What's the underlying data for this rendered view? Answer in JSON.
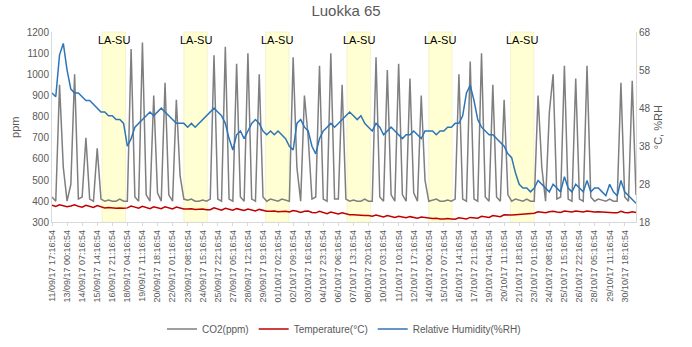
{
  "chart_data": {
    "type": "line",
    "title": "Luokka 65",
    "y_label": "ppm",
    "y2_label": "°C, %RH",
    "categories": [
      "11/09/17 17:16:54",
      null,
      null,
      null,
      "13/09/17 00:16:54",
      null,
      null,
      null,
      "14/09/17 07:16:54",
      null,
      null,
      null,
      "15/09/17 14:16:54",
      null,
      null,
      null,
      "16/09/17 21:16:54",
      null,
      null,
      null,
      "18/09/17 04:16:54",
      null,
      null,
      null,
      "19/09/17 11:16:54",
      null,
      null,
      null,
      "20/09/17 18:16:54",
      null,
      null,
      null,
      "22/09/17 01:16:54",
      null,
      null,
      null,
      "23/09/17 08:16:54",
      null,
      null,
      null,
      "24/09/17 15:16:54",
      null,
      null,
      null,
      "25/09/17 22:16:54",
      null,
      null,
      null,
      "27/09/17 05:16:54",
      null,
      null,
      null,
      "28/09/17 12:16:54",
      null,
      null,
      null,
      "29/09/17 19:16:54",
      null,
      null,
      null,
      "01/10/17 02:16:54",
      null,
      null,
      null,
      "02/10/17 09:16:54",
      null,
      null,
      null,
      "03/10/17 16:16:54",
      null,
      null,
      null,
      "04/10/17 23:16:54",
      null,
      null,
      null,
      "06/10/17 06:16:54",
      null,
      null,
      null,
      "07/10/17 13:16:54",
      null,
      null,
      null,
      "08/10/17 20:16:54",
      null,
      null,
      null,
      "10/10/17 03:16:54",
      null,
      null,
      null,
      "11/10/17 10:16:54",
      null,
      null,
      null,
      "12/10/17 17:16:54",
      null,
      null,
      null,
      "14/10/17 00:16:54",
      null,
      null,
      null,
      "15/10/17 07:16:54",
      null,
      null,
      null,
      "16/10/17 14:16:54",
      null,
      null,
      null,
      "17/10/17 21:16:54",
      null,
      null,
      null,
      "19/10/17 04:16:54",
      null,
      null,
      null,
      "20/10/17 11:16:54",
      null,
      null,
      null,
      "21/10/17 18:16:54",
      null,
      null,
      null,
      "23/10/17 01:16:54",
      null,
      null,
      null,
      "24/10/17 08:16:54",
      null,
      null,
      null,
      "25/10/17 15:16:54",
      null,
      null,
      null,
      "26/10/17 22:16:54",
      null,
      null,
      null,
      "28/10/17 05:16:54",
      null,
      null,
      null,
      "29/10/17 11:16:54",
      null,
      null,
      null,
      "30/10/17 18:16:54",
      null,
      null,
      null
    ],
    "series": [
      {
        "name": "CO2(ppm)",
        "color": "#7f7f7f",
        "values": [
          420,
          400,
          950,
          560,
          400,
          480,
          1000,
          410,
          420,
          700,
          410,
          400,
          650,
          410,
          400,
          405,
          400,
          400,
          410,
          400,
          400,
          1120,
          420,
          400,
          1150,
          430,
          400,
          900,
          440,
          400,
          960,
          430,
          400,
          880,
          520,
          410,
          405,
          410,
          400,
          400,
          405,
          400,
          410,
          1090,
          410,
          400,
          1130,
          410,
          400,
          1050,
          420,
          400,
          1100,
          410,
          400,
          1000,
          420,
          400,
          410,
          405,
          400,
          410,
          405,
          400,
          1080,
          560,
          400,
          900,
          700,
          410,
          420,
          1040,
          410,
          400,
          1100,
          410,
          410,
          950,
          410,
          400,
          405,
          400,
          400,
          410,
          400,
          400,
          1080,
          420,
          400,
          1020,
          430,
          400,
          1050,
          430,
          400,
          980,
          440,
          400,
          900,
          500,
          400,
          405,
          410,
          400,
          400,
          405,
          400,
          410,
          1000,
          410,
          400,
          1060,
          410,
          400,
          1100,
          420,
          400,
          950,
          420,
          400,
          880,
          430,
          400,
          410,
          405,
          400,
          410,
          400,
          400,
          900,
          560,
          400,
          820,
          1000,
          410,
          420,
          1040,
          410,
          400,
          980,
          410,
          400,
          1040,
          420,
          400,
          410,
          405,
          400,
          410,
          400,
          400,
          960,
          420,
          400,
          970,
          430
        ]
      },
      {
        "name": "Temperature(°C)",
        "color": "#c00000",
        "axis": "y2",
        "values": [
          22.5,
          22.2,
          22.6,
          22.4,
          22.1,
          22.3,
          22.6,
          22.2,
          22.0,
          22.5,
          22.1,
          21.9,
          22.4,
          22.0,
          21.8,
          21.9,
          21.8,
          21.7,
          21.8,
          21.7,
          21.8,
          22.3,
          22.0,
          21.7,
          22.2,
          21.9,
          21.6,
          22.1,
          21.9,
          21.6,
          22.1,
          21.8,
          21.5,
          22.0,
          21.7,
          21.5,
          21.5,
          21.6,
          21.4,
          21.4,
          21.5,
          21.3,
          21.3,
          21.8,
          21.5,
          21.2,
          21.7,
          21.4,
          21.2,
          21.6,
          21.3,
          21.1,
          21.5,
          21.2,
          21.0,
          21.4,
          21.1,
          20.9,
          20.9,
          21.0,
          20.8,
          20.8,
          20.9,
          20.7,
          21.1,
          20.9,
          20.6,
          20.9,
          21.0,
          20.6,
          20.5,
          20.9,
          20.5,
          20.3,
          20.7,
          20.4,
          20.2,
          20.5,
          20.2,
          20.0,
          20.0,
          19.9,
          19.8,
          19.8,
          19.8,
          19.6,
          19.9,
          19.6,
          19.4,
          19.8,
          19.5,
          19.3,
          19.6,
          19.4,
          19.2,
          19.5,
          19.3,
          19.1,
          19.4,
          19.2,
          19.0,
          19.0,
          19.1,
          18.9,
          18.9,
          19.0,
          18.9,
          18.8,
          19.2,
          19.0,
          18.9,
          19.3,
          19.2,
          19.1,
          19.6,
          19.4,
          19.3,
          19.8,
          19.6,
          19.5,
          20.0,
          19.9,
          19.9,
          20.0,
          20.1,
          20.1,
          20.2,
          20.3,
          20.4,
          20.8,
          20.6,
          20.5,
          20.8,
          20.9,
          20.7,
          20.6,
          21.0,
          20.8,
          20.7,
          21.0,
          20.8,
          20.7,
          21.0,
          20.8,
          20.7,
          20.8,
          20.7,
          20.6,
          20.6,
          20.5,
          20.5,
          20.9,
          20.6,
          20.5,
          20.8,
          20.6
        ]
      },
      {
        "name": "Relative Humidity(%RH)",
        "color": "#2e75b6",
        "axis": "y2",
        "values": [
          52,
          51,
          62,
          65,
          58,
          53,
          52,
          52,
          51,
          50,
          50,
          49,
          48,
          47,
          47,
          46,
          46,
          45,
          45,
          44,
          38,
          40,
          43,
          44,
          45,
          46,
          47,
          46,
          47,
          48,
          47,
          46,
          45,
          44,
          44,
          44,
          43,
          44,
          43,
          44,
          45,
          46,
          47,
          48,
          47,
          46,
          44,
          40,
          37,
          41,
          42,
          40,
          42,
          44,
          45,
          44,
          42,
          41,
          42,
          41,
          42,
          41,
          40,
          38,
          37,
          44,
          45,
          43,
          42,
          38,
          36,
          40,
          42,
          43,
          44,
          43,
          44,
          45,
          46,
          47,
          46,
          45,
          46,
          44,
          43,
          42,
          44,
          43,
          41,
          42,
          43,
          42,
          41,
          40,
          41,
          41,
          42,
          41,
          40,
          42,
          42,
          42,
          41,
          42,
          42,
          43,
          43,
          44,
          44,
          46,
          52,
          54,
          50,
          45,
          43,
          42,
          41,
          41,
          40,
          39,
          38,
          36,
          35,
          31,
          28,
          27,
          27,
          26,
          27,
          29,
          28,
          27,
          26,
          28,
          27,
          26,
          30,
          27,
          26,
          28,
          27,
          26,
          29,
          26,
          27,
          27,
          26,
          25,
          28,
          26,
          25,
          29,
          26,
          25,
          24,
          23
        ]
      }
    ],
    "ylim": [
      300,
      1200
    ],
    "yticks": [
      300,
      400,
      500,
      600,
      700,
      800,
      900,
      1000,
      1100,
      1200
    ],
    "y2lim": [
      18,
      68
    ],
    "y2ticks": [
      18,
      28,
      38,
      48,
      58,
      68
    ],
    "grid": false,
    "legend": "bottom",
    "annotations": [
      {
        "text": "LA-SU",
        "x0": 13.3,
        "x1": 19.5
      },
      {
        "text": "LA-SU",
        "x0": 35.0,
        "x1": 41.2
      },
      {
        "text": "LA-SU",
        "x0": 56.7,
        "x1": 62.9
      },
      {
        "text": "LA-SU",
        "x0": 78.3,
        "x1": 84.5
      },
      {
        "text": "LA-SU",
        "x0": 100.0,
        "x1": 106.2
      },
      {
        "text": "LA-SU",
        "x0": 121.7,
        "x1": 127.9
      }
    ]
  }
}
